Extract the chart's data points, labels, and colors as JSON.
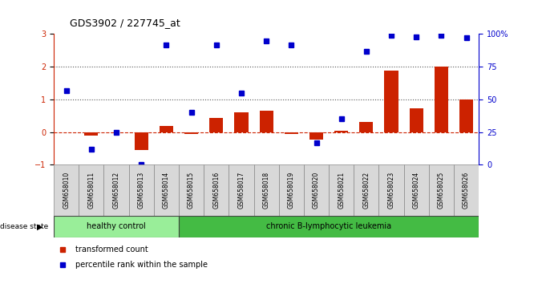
{
  "title": "GDS3902 / 227745_at",
  "samples": [
    "GSM658010",
    "GSM658011",
    "GSM658012",
    "GSM658013",
    "GSM658014",
    "GSM658015",
    "GSM658016",
    "GSM658017",
    "GSM658018",
    "GSM658019",
    "GSM658020",
    "GSM658021",
    "GSM658022",
    "GSM658023",
    "GSM658024",
    "GSM658025",
    "GSM658026"
  ],
  "transformed_count": [
    0.0,
    -0.12,
    0.0,
    -0.55,
    0.18,
    -0.05,
    0.43,
    0.6,
    0.65,
    -0.05,
    -0.22,
    0.05,
    0.31,
    1.88,
    0.72,
    2.0,
    1.0
  ],
  "percentile_rank_pct": [
    57,
    12,
    25,
    0,
    92,
    40,
    92,
    55,
    95,
    92,
    17,
    35,
    87,
    99,
    98,
    99,
    97
  ],
  "ylim_left": [
    -1,
    3
  ],
  "ylim_right": [
    0,
    100
  ],
  "yticks_left": [
    -1,
    0,
    1,
    2,
    3
  ],
  "yticks_right": [
    0,
    25,
    50,
    75,
    100
  ],
  "ytick_labels_right": [
    "0",
    "25",
    "50",
    "75",
    "100%"
  ],
  "bar_color": "#cc2200",
  "dot_color": "#0000cc",
  "healthy_count": 5,
  "healthy_label": "healthy control",
  "disease_label": "chronic B-lymphocytic leukemia",
  "disease_state_label": "disease state",
  "legend_bar": "transformed count",
  "legend_dot": "percentile rank within the sample",
  "healthy_color": "#99ee99",
  "disease_color": "#44bb44",
  "bg_color": "#ffffff",
  "hline_color": "#cc2200",
  "dotted_line_color": "#555555",
  "label_box_color": "#d8d8d8"
}
